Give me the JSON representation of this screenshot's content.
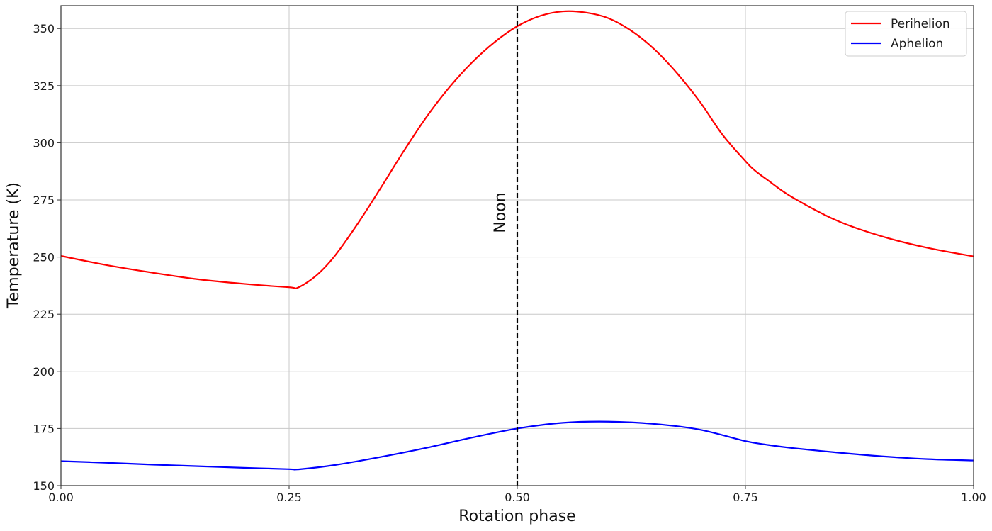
{
  "chart_data": {
    "type": "line",
    "title": "",
    "xlabel": "Rotation phase",
    "ylabel": "Temperature (K)",
    "xlim": [
      0.0,
      1.0
    ],
    "ylim": [
      150,
      360
    ],
    "xticks": [
      0.0,
      0.25,
      0.5,
      0.75,
      1.0
    ],
    "xtick_labels": [
      "0.00",
      "0.25",
      "0.50",
      "0.75",
      "1.00"
    ],
    "yticks": [
      150,
      175,
      200,
      225,
      250,
      275,
      300,
      325,
      350
    ],
    "ytick_labels": [
      "150",
      "175",
      "200",
      "225",
      "250",
      "275",
      "300",
      "325",
      "350"
    ],
    "grid": true,
    "legend_position": "top-right",
    "annotations": [
      {
        "type": "vline",
        "x": 0.5,
        "style": "dashed",
        "color": "#000000",
        "label": "Noon"
      }
    ],
    "series": [
      {
        "name": "Perihelion",
        "color": "#ff0000",
        "x": [
          0.0,
          0.05,
          0.1,
          0.15,
          0.2,
          0.25,
          0.26,
          0.28,
          0.3,
          0.325,
          0.35,
          0.375,
          0.4,
          0.425,
          0.45,
          0.475,
          0.5,
          0.525,
          0.55,
          0.575,
          0.6,
          0.625,
          0.65,
          0.675,
          0.7,
          0.725,
          0.75,
          0.76,
          0.775,
          0.8,
          0.85,
          0.9,
          0.95,
          1.0
        ],
        "values": [
          250.5,
          246.5,
          243.2,
          240.3,
          238.3,
          236.8,
          236.7,
          242.0,
          250.5,
          264.5,
          280.0,
          296.0,
          311.0,
          324.0,
          335.0,
          344.0,
          351.0,
          355.5,
          357.5,
          357.0,
          354.5,
          349.0,
          341.0,
          330.5,
          318.0,
          303.5,
          292.0,
          288.0,
          283.5,
          276.5,
          266.0,
          259.0,
          254.0,
          250.3
        ]
      },
      {
        "name": "Aphelion",
        "color": "#0000ff",
        "x": [
          0.0,
          0.05,
          0.1,
          0.15,
          0.2,
          0.25,
          0.26,
          0.3,
          0.35,
          0.4,
          0.45,
          0.5,
          0.55,
          0.6,
          0.65,
          0.7,
          0.75,
          0.775,
          0.8,
          0.85,
          0.9,
          0.95,
          1.0
        ],
        "values": [
          160.7,
          160.0,
          159.2,
          158.5,
          157.8,
          157.2,
          157.1,
          159.0,
          162.5,
          166.5,
          171.0,
          175.0,
          177.5,
          178.0,
          177.0,
          174.5,
          169.5,
          167.8,
          166.5,
          164.5,
          162.8,
          161.6,
          161.0
        ]
      }
    ]
  }
}
